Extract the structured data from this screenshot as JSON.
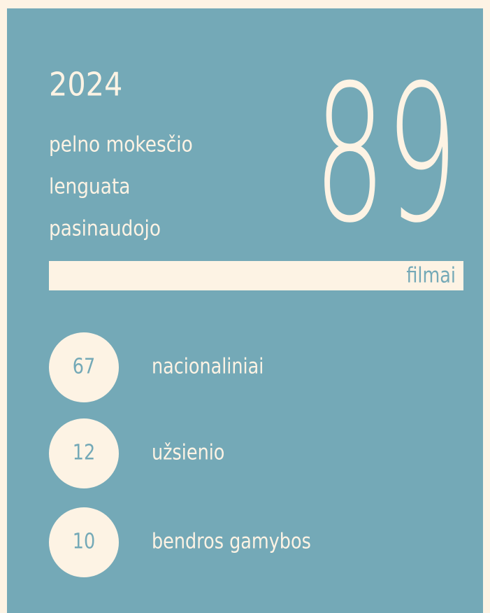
{
  "header": {
    "year": "2024",
    "lines": [
      "pelno mokesčio",
      "lenguata",
      "pasinaudojo"
    ],
    "total": "89",
    "unit": "filmai"
  },
  "items": [
    {
      "count": "67",
      "label": "nacionaliniai"
    },
    {
      "count": "12",
      "label": "užsienio"
    },
    {
      "count": "10",
      "label": "bendros gamybos"
    }
  ]
}
